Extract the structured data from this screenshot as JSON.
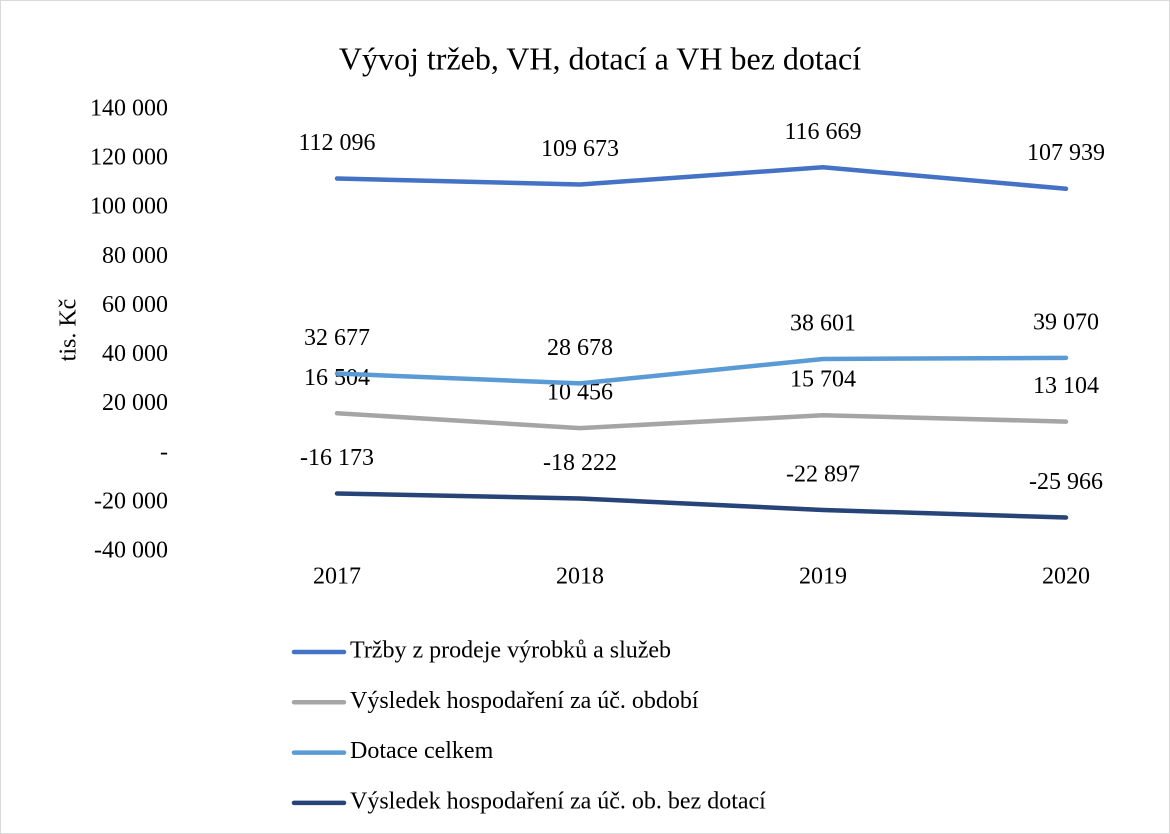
{
  "chart_data": {
    "type": "line",
    "title": "Vývoj tržeb, VH, dotací a VH bez dotací",
    "y_label": "tis. Kč",
    "categories": [
      "2017",
      "2018",
      "2019",
      "2020"
    ],
    "series": [
      {
        "name": "Tržby z prodeje výrobků a služeb",
        "color": "#4472c4",
        "values": [
          112096,
          109673,
          116669,
          107939
        ],
        "value_labels": [
          "112 096",
          "109 673",
          "116 669",
          "107 939"
        ]
      },
      {
        "name": "Výsledek hospodaření za úč. období",
        "color": "#a5a5a5",
        "values": [
          16504,
          10456,
          15704,
          13104
        ],
        "value_labels": [
          "16 504",
          "10 456",
          "15 704",
          "13 104"
        ]
      },
      {
        "name": "Dotace celkem",
        "color": "#5b9bd5",
        "values": [
          32677,
          28678,
          38601,
          39070
        ],
        "value_labels": [
          "32 677",
          "28 678",
          "38 601",
          "39 070"
        ]
      },
      {
        "name": "Výsledek hospodaření za úč. ob. bez dotací",
        "color": "#264478",
        "values": [
          -16173,
          -18222,
          -22897,
          -25966
        ],
        "value_labels": [
          "-16 173",
          "-18 222",
          "-22 897",
          "-25 966"
        ]
      }
    ],
    "ylim": [
      -40000,
      140000
    ],
    "yticks": [
      {
        "value": -40000,
        "label": "-40 000"
      },
      {
        "value": -20000,
        "label": "-20 000"
      },
      {
        "value": 0,
        "label": "-"
      },
      {
        "value": 20000,
        "label": "20 000"
      },
      {
        "value": 40000,
        "label": "40 000"
      },
      {
        "value": 60000,
        "label": "60 000"
      },
      {
        "value": 80000,
        "label": "80 000"
      },
      {
        "value": 100000,
        "label": "100 000"
      },
      {
        "value": 120000,
        "label": "120 000"
      },
      {
        "value": 140000,
        "label": "140 000"
      }
    ],
    "grid": false
  }
}
